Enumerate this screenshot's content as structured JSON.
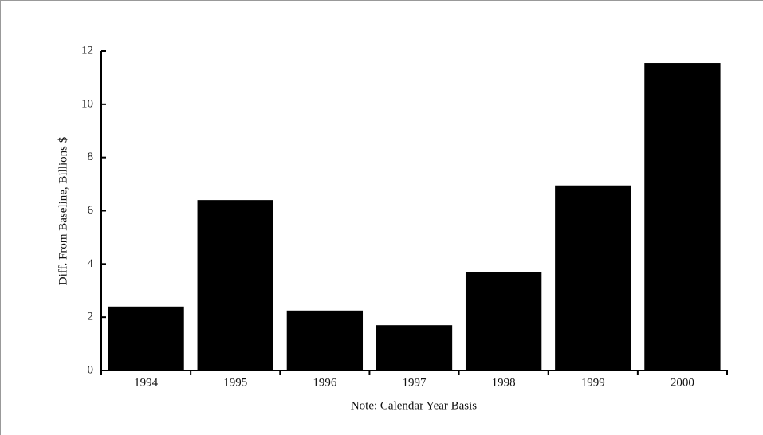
{
  "chart_data": {
    "type": "bar",
    "y_label": "Diff. From Baseline, Billions $",
    "x_label": "Note: Calendar Year Basis",
    "categories": [
      "1994",
      "1995",
      "1996",
      "1997",
      "1998",
      "1999",
      "2000"
    ],
    "values": [
      2.4,
      6.4,
      2.25,
      1.7,
      3.7,
      6.95,
      11.55
    ],
    "color": "#000000",
    "ylim": [
      0,
      12
    ],
    "yticks": [
      0,
      2,
      4,
      6,
      8,
      10,
      12
    ],
    "grid": false
  }
}
